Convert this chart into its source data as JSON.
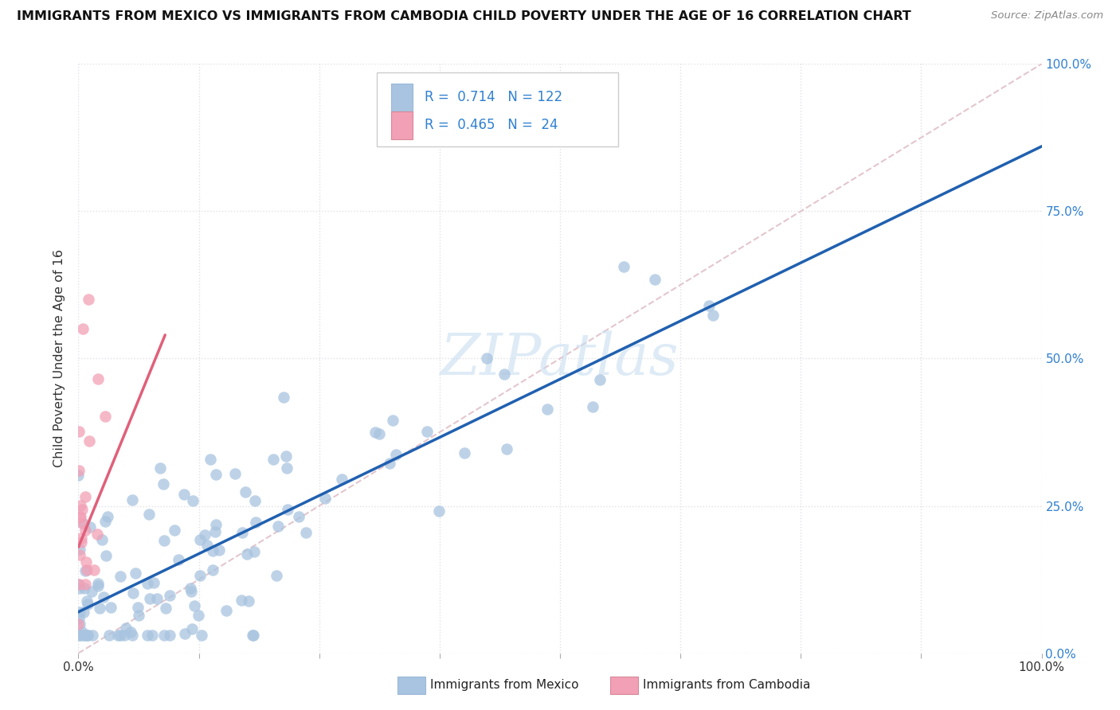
{
  "title": "IMMIGRANTS FROM MEXICO VS IMMIGRANTS FROM CAMBODIA CHILD POVERTY UNDER THE AGE OF 16 CORRELATION CHART",
  "source": "Source: ZipAtlas.com",
  "ylabel": "Child Poverty Under the Age of 16",
  "R_mexico": 0.714,
  "N_mexico": 122,
  "R_cambodia": 0.465,
  "N_cambodia": 24,
  "color_mexico": "#a8c4e0",
  "color_cambodia": "#f2a0b5",
  "line_color_mexico": "#2060b0",
  "line_color_cambodia": "#e0607a",
  "line_color_diagonal": "#e0c0c8",
  "watermark_color": "#c8dff0",
  "right_tick_color": "#3080d0",
  "legend_text_color": "#3080d0",
  "grid_color": "#e0e0e8",
  "title_color": "#111111",
  "source_color": "#888888",
  "ylabel_color": "#333333",
  "bottom_legend_color_mex": "#a8c4e0",
  "bottom_legend_color_cam": "#f2a0b5",
  "bottom_legend_text_color": "#222222"
}
